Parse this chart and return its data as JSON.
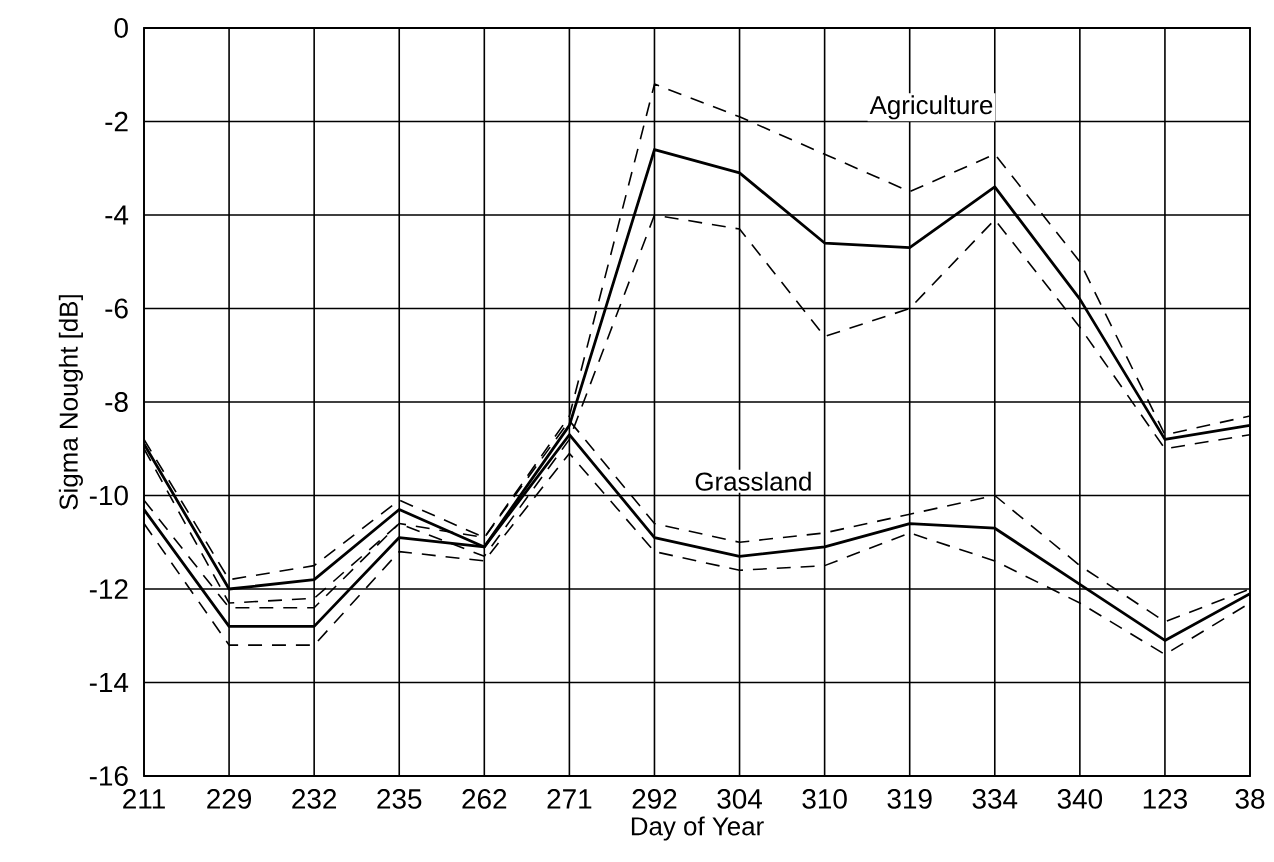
{
  "chart_data": {
    "type": "line",
    "xlabel": "Day of Year",
    "ylabel": "Sigma Nought [dB]",
    "categories": [
      "211",
      "229",
      "232",
      "235",
      "262",
      "271",
      "292",
      "304",
      "310",
      "319",
      "334",
      "340",
      "123",
      "38"
    ],
    "ylim": [
      -16,
      0
    ],
    "yticks": [
      -16,
      -14,
      -12,
      -10,
      -8,
      -6,
      -4,
      -2,
      0
    ],
    "grid": true,
    "series": [
      {
        "color": "#000000",
        "line_style": "solid",
        "values": [
          -8.9,
          -12.0,
          -11.8,
          -10.3,
          -11.1,
          -8.5,
          -2.6,
          -3.1,
          -4.6,
          -4.7,
          -3.4,
          -5.8,
          -8.8,
          -8.5
        ]
      },
      {
        "color": "#000000",
        "line_style": "dashed",
        "values": [
          -8.8,
          -11.8,
          -11.5,
          -10.1,
          -10.9,
          -8.3,
          -1.2,
          -1.9,
          -2.7,
          -3.5,
          -2.7,
          -5.0,
          -8.7,
          -8.3
        ]
      },
      {
        "color": "#000000",
        "line_style": "dashed",
        "values": [
          -9.0,
          -12.3,
          -12.2,
          -10.6,
          -11.3,
          -8.8,
          -4.0,
          -4.3,
          -6.6,
          -6.0,
          -4.1,
          -6.4,
          -9.0,
          -8.7
        ]
      },
      {
        "color": "#000000",
        "line_style": "solid",
        "values": [
          -10.3,
          -12.8,
          -12.8,
          -10.9,
          -11.1,
          -8.7,
          -10.9,
          -11.3,
          -11.1,
          -10.6,
          -10.7,
          -11.9,
          -13.1,
          -12.1
        ]
      },
      {
        "color": "#000000",
        "line_style": "dashed",
        "values": [
          -10.1,
          -12.4,
          -12.4,
          -10.6,
          -10.9,
          -8.4,
          -10.6,
          -11.0,
          -10.8,
          -10.4,
          -10.0,
          -11.5,
          -12.7,
          -12.0
        ]
      },
      {
        "color": "#000000",
        "line_style": "dashed",
        "values": [
          -10.6,
          -13.2,
          -13.2,
          -11.2,
          -11.4,
          -9.1,
          -11.2,
          -11.6,
          -11.5,
          -10.8,
          -11.4,
          -12.3,
          -13.4,
          -12.3
        ]
      }
    ],
    "annotations": [
      "Agriculture",
      "Grassland"
    ]
  }
}
